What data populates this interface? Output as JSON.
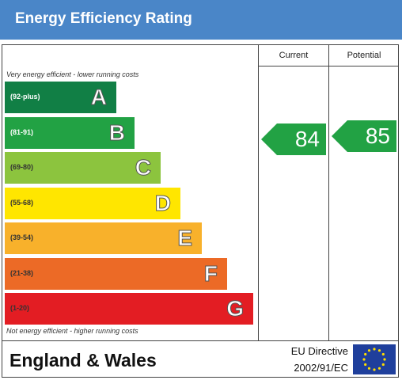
{
  "header": {
    "title": "Energy Efficiency Rating"
  },
  "columns": {
    "current": "Current",
    "potential": "Potential"
  },
  "notes": {
    "top": "Very energy efficient - lower running costs",
    "bottom": "Not energy efficient - higher running costs"
  },
  "chart_data": {
    "type": "bar",
    "title": "Energy Efficiency Rating",
    "bands": [
      {
        "letter": "A",
        "range": "(92-plus)",
        "color": "#117f45",
        "text_color": "#ffffff"
      },
      {
        "letter": "B",
        "range": "(81-91)",
        "color": "#22a244",
        "text_color": "#ffffff"
      },
      {
        "letter": "C",
        "range": "(69-80)",
        "color": "#8cc43e",
        "text_color": "#333333"
      },
      {
        "letter": "D",
        "range": "(55-68)",
        "color": "#ffe600",
        "text_color": "#333333"
      },
      {
        "letter": "E",
        "range": "(39-54)",
        "color": "#f8b12b",
        "text_color": "#333333"
      },
      {
        "letter": "F",
        "range": "(21-38)",
        "color": "#ec6a26",
        "text_color": "#333333"
      },
      {
        "letter": "G",
        "range": "(1-20)",
        "color": "#e31d23",
        "text_color": "#333333"
      }
    ],
    "current": {
      "value": 84,
      "band": "B"
    },
    "potential": {
      "value": 85,
      "band": "B"
    },
    "arrow_color": "#22a244"
  },
  "footer": {
    "region": "England & Wales",
    "directive_line1": "EU Directive",
    "directive_line2": "2002/91/EC",
    "flag_icon": "eu-flag-icon",
    "flag_color": "#1f3f9c",
    "star_color": "#ffdd00"
  }
}
